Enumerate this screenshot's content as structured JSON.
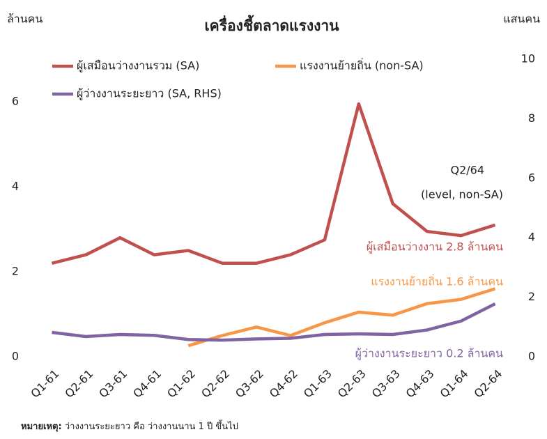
{
  "chart_data": {
    "type": "line",
    "title": "เครื่องชี้ตลาดแรงงาน",
    "ylabel": "ล้านคน",
    "y2label": "แสนคน",
    "categories": [
      "Q1-61",
      "Q2-61",
      "Q3-61",
      "Q4-61",
      "Q1-62",
      "Q2-62",
      "Q3-62",
      "Q4-62",
      "Q1-63",
      "Q2-63",
      "Q3-63",
      "Q4-63",
      "Q1-64",
      "Q2-64"
    ],
    "series": [
      {
        "name": "ผู้เสมือนว่างงานรวม (SA)",
        "color": "#c0504d",
        "values": [
          2.2,
          2.4,
          2.8,
          2.4,
          2.5,
          2.2,
          2.2,
          2.4,
          2.75,
          5.95,
          3.6,
          2.95,
          2.85,
          3.1
        ]
      },
      {
        "name": "แรงงานย้ายถิ่น (non-SA)",
        "color": "#f79646",
        "values": [
          null,
          null,
          null,
          null,
          0.26,
          0.5,
          0.7,
          0.5,
          0.8,
          1.05,
          0.98,
          1.25,
          1.35,
          1.6
        ]
      },
      {
        "name": "ผู้ว่างงานระยะยาว (SA, RHS)",
        "color": "#8064a2",
        "axis": "y2",
        "values": [
          0.82,
          0.68,
          0.75,
          0.72,
          0.58,
          0.56,
          0.6,
          0.62,
          0.75,
          0.77,
          0.75,
          0.9,
          1.2,
          1.78
        ]
      }
    ],
    "ylim": [
      0,
      7
    ],
    "yticks": [
      0,
      2,
      4,
      6
    ],
    "y2lim": [
      0,
      10
    ],
    "y2ticks": [
      0,
      2,
      4,
      6,
      8,
      10
    ],
    "annotations": [
      {
        "text": "Q2/64",
        "color": "#222222"
      },
      {
        "text": "(level, non-SA)",
        "color": "#222222"
      },
      {
        "text": "ผู้เสมือนว่างงาน 2.8 ล้านคน",
        "color": "#c0504d"
      },
      {
        "text": "แรงงานย้ายถิ่น 1.6 ล้านคน",
        "color": "#f79646"
      },
      {
        "text": "ผู้ว่างงานระยะยาว 0.2 ล้านคน",
        "color": "#8064a2"
      }
    ],
    "note": {
      "label": "หมายเหตุ:",
      "text": " ว่างงานระยะยาว คือ ว่างงานนาน 1 ปี ขึ้นไป"
    }
  }
}
